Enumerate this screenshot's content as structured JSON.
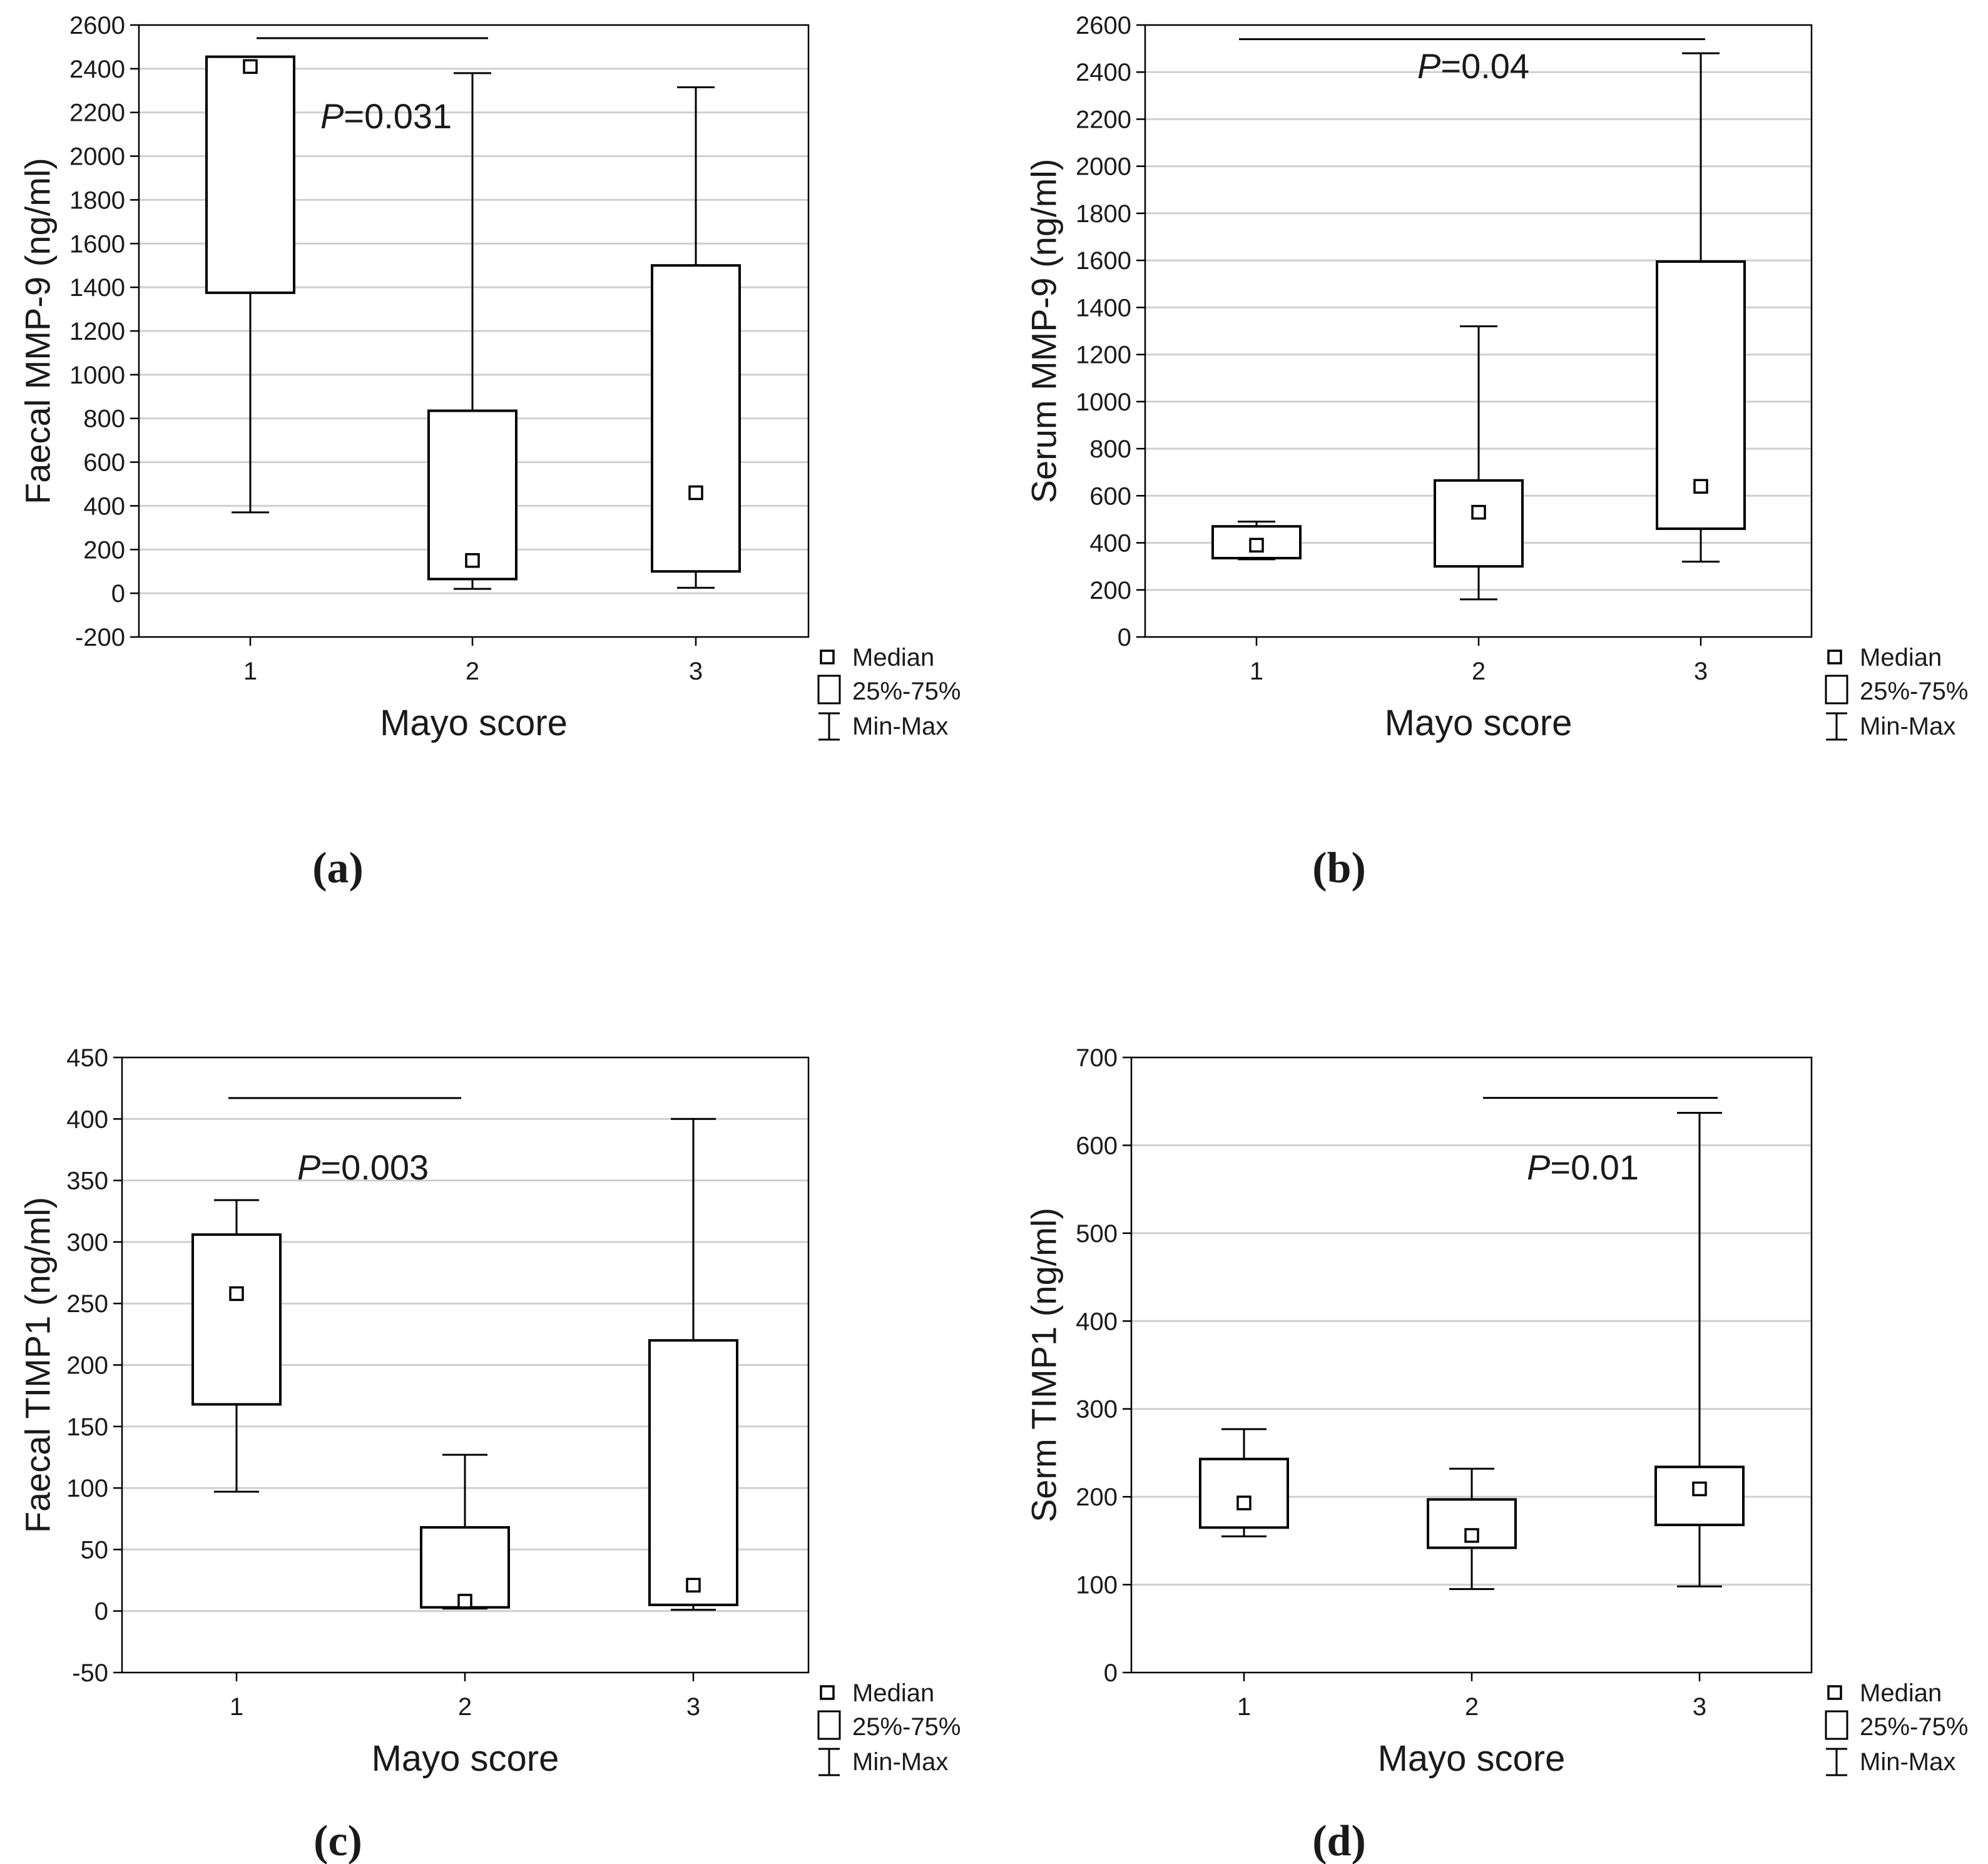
{
  "legend": {
    "median": "Median",
    "iqr": "25%-75%",
    "range": "Min-Max"
  },
  "chart_data": [
    {
      "panel": "(a)",
      "type": "box",
      "title": "",
      "xlabel": "Mayo score",
      "ylabel": "Faecal MMP-9 (ng/ml)",
      "categories": [
        "1",
        "2",
        "3"
      ],
      "ylim": [
        -200,
        2600
      ],
      "yticks": [
        -200,
        0,
        200,
        400,
        600,
        800,
        1000,
        1200,
        1400,
        1600,
        1800,
        2000,
        2200,
        2400,
        2600
      ],
      "min": [
        370,
        20,
        25
      ],
      "q1": [
        1375,
        65,
        100
      ],
      "median": [
        2410,
        150,
        460
      ],
      "q3": [
        2455,
        835,
        1500
      ],
      "max": [
        2455,
        2380,
        2315
      ],
      "significance": {
        "label_prefix": "P",
        "label_value": "=0.031",
        "from": "1",
        "to": "2",
        "y": 2540
      }
    },
    {
      "panel": "(b)",
      "type": "box",
      "title": "",
      "xlabel": "Mayo score",
      "ylabel": "Serum MMP-9 (ng/ml)",
      "categories": [
        "1",
        "2",
        "3"
      ],
      "ylim": [
        0,
        2600
      ],
      "yticks": [
        0,
        200,
        400,
        600,
        800,
        1000,
        1200,
        1400,
        1600,
        1800,
        2000,
        2200,
        2400,
        2600
      ],
      "min": [
        330,
        160,
        320
      ],
      "q1": [
        335,
        300,
        460
      ],
      "median": [
        390,
        530,
        640
      ],
      "q3": [
        470,
        665,
        1595
      ],
      "max": [
        490,
        1320,
        2480
      ],
      "significance": {
        "label_prefix": "P",
        "label_value": "=0.04",
        "from": "1",
        "to": "3",
        "y": 2540
      }
    },
    {
      "panel": "(c)",
      "type": "box",
      "title": "",
      "xlabel": "Mayo score",
      "ylabel": "Faecal TIMP1 (ng/ml)",
      "categories": [
        "1",
        "2",
        "3"
      ],
      "ylim": [
        -50,
        450
      ],
      "yticks": [
        -50,
        0,
        50,
        100,
        150,
        200,
        250,
        300,
        350,
        400,
        450
      ],
      "min": [
        97,
        2,
        1
      ],
      "q1": [
        168,
        3,
        5
      ],
      "median": [
        258,
        8,
        21
      ],
      "q3": [
        306,
        68,
        220
      ],
      "max": [
        334,
        127,
        400
      ],
      "significance": {
        "label_prefix": "P",
        "label_value": "=0.003",
        "from": "1",
        "to": "2",
        "y": 417
      }
    },
    {
      "panel": "(d)",
      "type": "box",
      "title": "",
      "xlabel": "Mayo score",
      "ylabel": "Serm TIMP1 (ng/ml)",
      "categories": [
        "1",
        "2",
        "3"
      ],
      "ylim": [
        0,
        700
      ],
      "yticks": [
        0,
        100,
        200,
        300,
        400,
        500,
        600,
        700
      ],
      "min": [
        155,
        95,
        98
      ],
      "q1": [
        165,
        142,
        168
      ],
      "median": [
        193,
        156,
        209
      ],
      "q3": [
        243,
        197,
        234
      ],
      "max": [
        277,
        232,
        637
      ],
      "significance": {
        "label_prefix": "P",
        "label_value": "=0.01",
        "from": "2",
        "to": "3",
        "y": 654
      }
    }
  ]
}
